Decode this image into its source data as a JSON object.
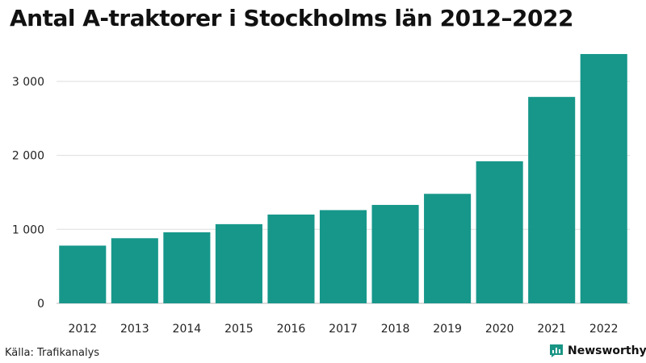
{
  "source": "Källa: Trafikanalys",
  "brand": {
    "name": "Newsworthy",
    "icon": "chart-speech-bubble-icon",
    "color": "#1a9585"
  },
  "chart_data": {
    "type": "bar",
    "title": "Antal A-traktorer i Stockholms län 2012–2022",
    "xlabel": "",
    "ylabel": "",
    "categories": [
      "2012",
      "2013",
      "2014",
      "2015",
      "2016",
      "2017",
      "2018",
      "2019",
      "2020",
      "2021",
      "2022"
    ],
    "values": [
      780,
      880,
      960,
      1070,
      1200,
      1260,
      1330,
      1480,
      1920,
      2790,
      3370
    ],
    "ylim": [
      0,
      3400
    ],
    "yticks": [
      0,
      1000,
      2000,
      3000
    ],
    "ytick_labels": [
      "0",
      "1 000",
      "2 000",
      "3 000"
    ],
    "bar_color": "#16978a",
    "grid": true,
    "legend": "none"
  }
}
